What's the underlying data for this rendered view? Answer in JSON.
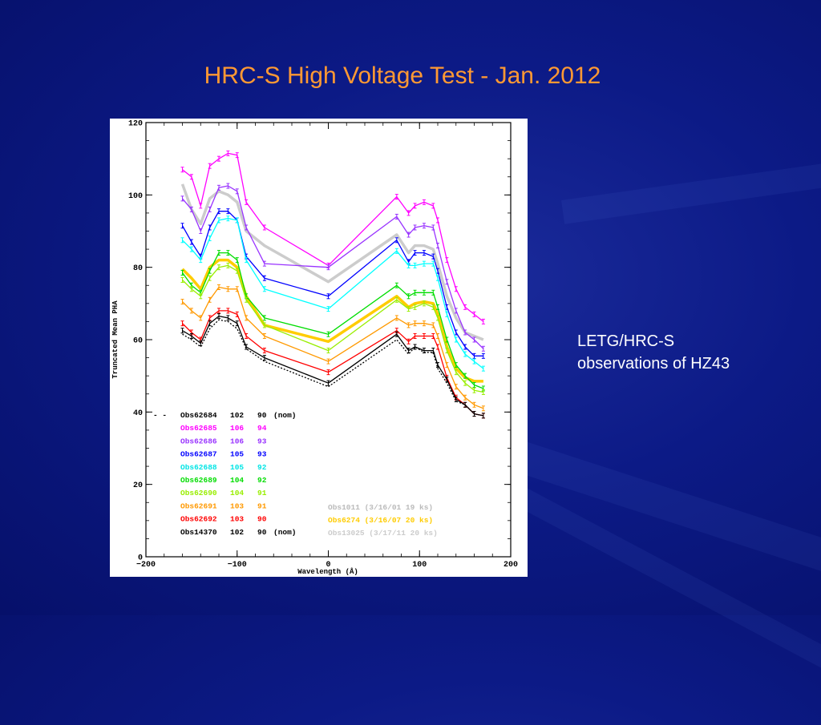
{
  "slide": {
    "title": "HRC-S High Voltage Test -  Jan. 2012",
    "note_line1": "LETG/HRC-S",
    "note_line2": "observations of HZ43"
  },
  "chart_data": {
    "type": "line",
    "xlabel": "Wavelength (Å)",
    "ylabel": "Truncated Mean PHA",
    "xlim": [
      -200,
      200
    ],
    "ylim": [
      0,
      120
    ],
    "xticks": [
      -200,
      -100,
      0,
      100,
      200
    ],
    "yticks": [
      0,
      20,
      40,
      60,
      80,
      100,
      120
    ],
    "x": [
      -160,
      -150,
      -140,
      -130,
      -120,
      -110,
      -100,
      -90,
      -70,
      0,
      75,
      88,
      95,
      105,
      115,
      120,
      130,
      140,
      150,
      160,
      170
    ],
    "series": [
      {
        "name": "Obs62684",
        "hv1": "102",
        "hv2": "90",
        "note": "(nom)",
        "color": "#000000",
        "style": "dotted",
        "values": [
          61.5,
          60,
          58,
          63,
          65.5,
          65,
          63,
          57.5,
          54,
          47,
          60,
          56,
          58,
          56.5,
          56.5,
          52,
          48,
          43,
          42,
          39.5,
          39
        ]
      },
      {
        "name": "Obs62685",
        "hv1": "106",
        "hv2": "94",
        "color": "#ff00ff",
        "style": "solid",
        "values": [
          107,
          105,
          97,
          108,
          110,
          111.5,
          111,
          98,
          91,
          80.5,
          99.5,
          95,
          97,
          98,
          97,
          93,
          82,
          74,
          69,
          67,
          65
        ]
      },
      {
        "name": "Obs62686",
        "hv1": "106",
        "hv2": "93",
        "color": "#9933ff",
        "style": "solid",
        "values": [
          99,
          96,
          90,
          96,
          102,
          102.5,
          101,
          91,
          81,
          80,
          94,
          89,
          91,
          91.5,
          91,
          86,
          76,
          68,
          62,
          60,
          57.5
        ]
      },
      {
        "name": "Obs62687",
        "hv1": "105",
        "hv2": "93",
        "color": "#0000ff",
        "style": "solid",
        "values": [
          91.5,
          87,
          83,
          91,
          95.5,
          95.5,
          93,
          83,
          77,
          72,
          87.5,
          81.5,
          84,
          84,
          83,
          79,
          69,
          62,
          58,
          55.5,
          55.5
        ]
      },
      {
        "name": "Obs62688",
        "hv1": "105",
        "hv2": "92",
        "color": "#00ffff",
        "style": "solid",
        "values": [
          87.5,
          85,
          82,
          88,
          93,
          93.5,
          93,
          82,
          74,
          68.5,
          84.5,
          80.5,
          80.5,
          81,
          81,
          77,
          67,
          60,
          56,
          54,
          52
        ]
      },
      {
        "name": "Obs62689",
        "hv1": "104",
        "hv2": "92",
        "color": "#00dd00",
        "style": "solid",
        "values": [
          78.5,
          75,
          73,
          79,
          84,
          84,
          82,
          72,
          66,
          61.5,
          75,
          72,
          73,
          73,
          73,
          69,
          60,
          53,
          50,
          47.5,
          46.5
        ]
      },
      {
        "name": "Obs62690",
        "hv1": "104",
        "hv2": "91",
        "color": "#99ee00",
        "style": "solid",
        "values": [
          76.5,
          74,
          72,
          77,
          80,
          80.5,
          79,
          71,
          64,
          57,
          71,
          68.5,
          69,
          70,
          69,
          66,
          57,
          51,
          48,
          46,
          45.5
        ]
      },
      {
        "name": "Obs62691",
        "hv1": "103",
        "hv2": "91",
        "color": "#ff9900",
        "style": "solid",
        "values": [
          70.5,
          68,
          66,
          71,
          74.5,
          74,
          74,
          66,
          61,
          54,
          66,
          64,
          64.5,
          64.5,
          64,
          61,
          53,
          47,
          44,
          42,
          41
        ]
      },
      {
        "name": "Obs62692",
        "hv1": "103",
        "hv2": "90",
        "color": "#ff0000",
        "style": "solid",
        "values": [
          64.5,
          62,
          60,
          66,
          68,
          68,
          67,
          61,
          57,
          51,
          62.5,
          59.5,
          61,
          61,
          61,
          58,
          49.5,
          44,
          42,
          39.5,
          39
        ]
      },
      {
        "name": "Obs14370",
        "hv1": "102",
        "hv2": "90",
        "note": "(nom)",
        "color": "#000000",
        "style": "solid",
        "values": [
          62.5,
          61,
          59,
          64.5,
          66.5,
          66,
          64.5,
          58,
          55,
          48,
          61.5,
          57,
          58,
          57,
          57,
          53,
          49,
          43.5,
          42,
          39.5,
          39
        ]
      }
    ],
    "reference_series": [
      {
        "name": "Obs1011",
        "label": "(3/16/01 19 ks)",
        "color": "#bbbbbb",
        "values": [
          null,
          null,
          null,
          null,
          null,
          null,
          null,
          null,
          null,
          null,
          null,
          null,
          null,
          null,
          null,
          null,
          null,
          null,
          null,
          null,
          null
        ]
      },
      {
        "name": "Obs6274",
        "label": "(3/16/07 20 ks)",
        "color": "#ffcc00",
        "values": [
          79.5,
          77,
          74,
          80,
          82,
          82,
          80,
          72,
          64,
          59.5,
          72,
          69,
          70,
          70.5,
          70,
          67,
          58,
          52,
          49.5,
          48.5,
          48.5
        ]
      },
      {
        "name": "Obs13025",
        "label": "(3/17/11 20 ks)",
        "color": "#cccccc",
        "values": [
          103,
          96,
          92,
          99,
          101,
          100,
          98,
          90,
          86,
          76,
          89,
          84,
          86,
          86,
          85,
          81,
          72,
          66,
          62,
          61,
          60
        ]
      }
    ],
    "legend_placement": "lower-left",
    "grid": false
  }
}
